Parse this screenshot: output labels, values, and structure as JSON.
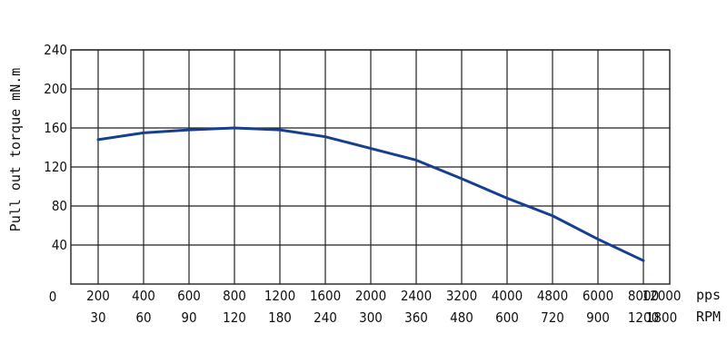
{
  "chart_data": {
    "type": "line",
    "ylabel": "Pull out torque mN.m",
    "yticks": [
      "240",
      "200",
      "160",
      "120",
      "80",
      "40"
    ],
    "y_origin_label": "0",
    "ylim": [
      0,
      240
    ],
    "x_pps_ticks": [
      "200",
      "400",
      "600",
      "800",
      "1200",
      "1600",
      "2000",
      "2400",
      "3200",
      "4000",
      "4800",
      "6000",
      "8000",
      "12000"
    ],
    "x_rpm_ticks": [
      "30",
      "60",
      "90",
      "120",
      "180",
      "240",
      "300",
      "360",
      "480",
      "600",
      "720",
      "900",
      "1200",
      "1800"
    ],
    "x_pps_unit": "pps",
    "x_rpm_unit": "RPM",
    "grid": true,
    "series": [
      {
        "color": "#173f8f",
        "x": [
          "200",
          "400",
          "600",
          "800",
          "1200",
          "1600",
          "2000",
          "2400",
          "3200",
          "4000",
          "4800",
          "6000",
          "8000"
        ],
        "values": [
          148,
          155,
          158,
          160,
          158,
          151,
          139,
          127,
          108,
          88,
          70,
          46,
          24
        ]
      }
    ]
  }
}
